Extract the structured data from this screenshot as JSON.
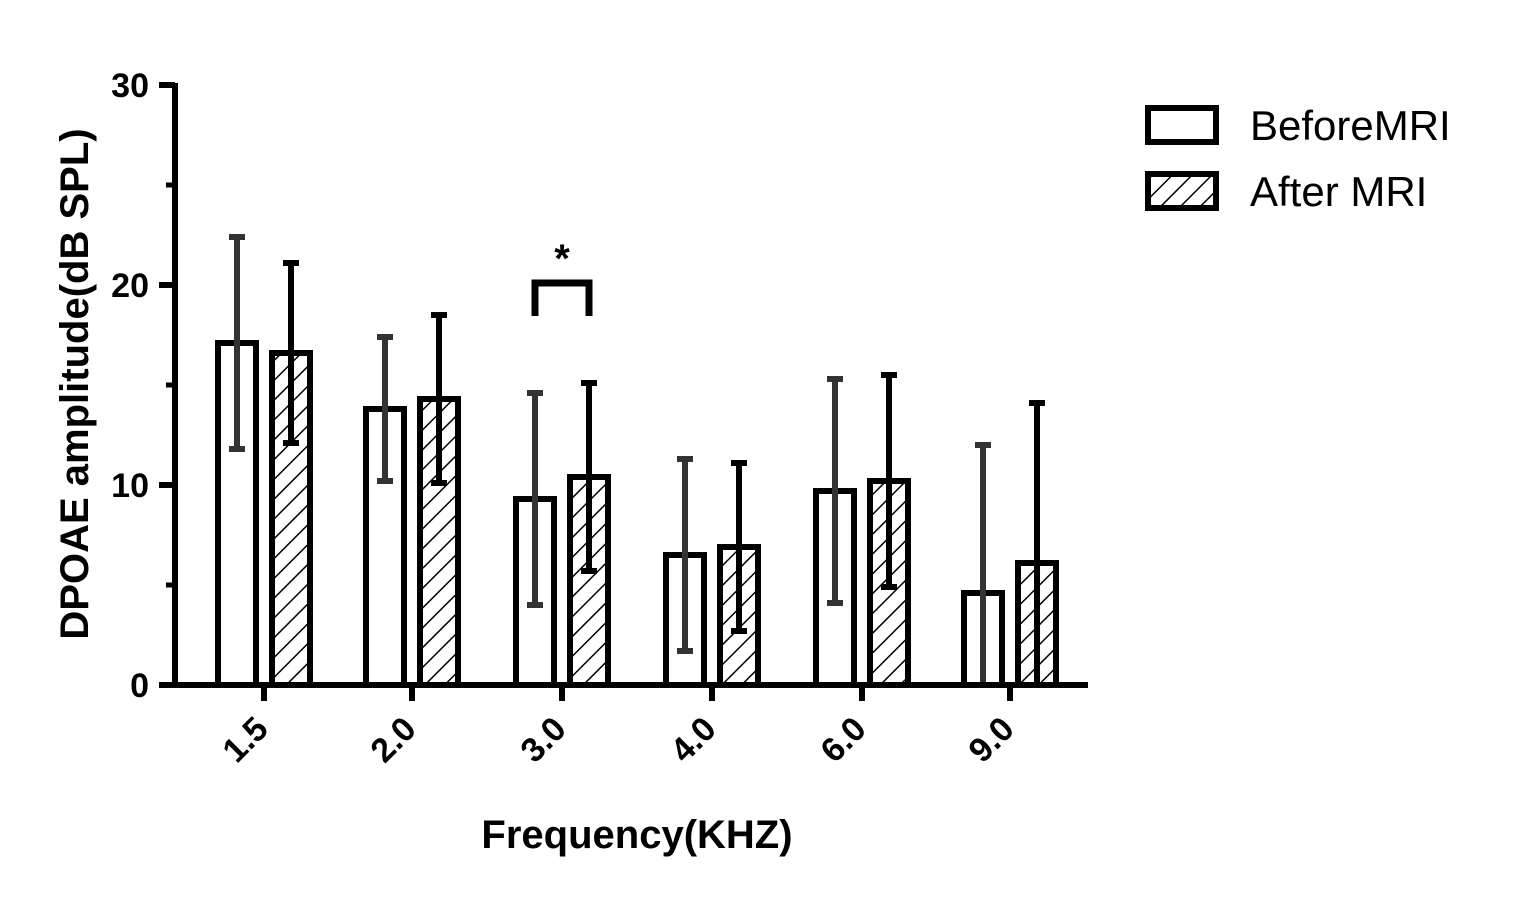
{
  "chart_data": {
    "type": "bar",
    "xlabel": "Frequency(KHZ)",
    "ylabel": "DPOAE amplitude(dB SPL)",
    "ylim": [
      0,
      30
    ],
    "yticks": [
      "0",
      "10",
      "20",
      "30"
    ],
    "categories": [
      "1.5",
      "2.0",
      "3.0",
      "4.0",
      "6.0",
      "9.0"
    ],
    "series": [
      {
        "name": "BeforeMRI",
        "pattern": "open",
        "values": [
          17.1,
          13.8,
          9.3,
          6.5,
          9.7,
          4.6
        ],
        "error": [
          5.3,
          3.6,
          5.3,
          4.8,
          5.6,
          7.4
        ]
      },
      {
        "name": "After MRI",
        "pattern": "hatched",
        "values": [
          16.6,
          14.3,
          10.4,
          6.9,
          10.2,
          6.1
        ],
        "error": [
          4.5,
          4.2,
          4.7,
          4.2,
          5.3,
          8.0
        ]
      }
    ],
    "legend_position": "top-right",
    "grid": false,
    "annotations": [
      {
        "label": "*",
        "category": "3.0",
        "meaning": "significance bracket between BeforeMRI and After MRI"
      }
    ],
    "colors": {
      "bar_stroke": "#000000",
      "bar_fill": "#ffffff",
      "before_error": "#333333",
      "after_error": "#000000"
    }
  }
}
